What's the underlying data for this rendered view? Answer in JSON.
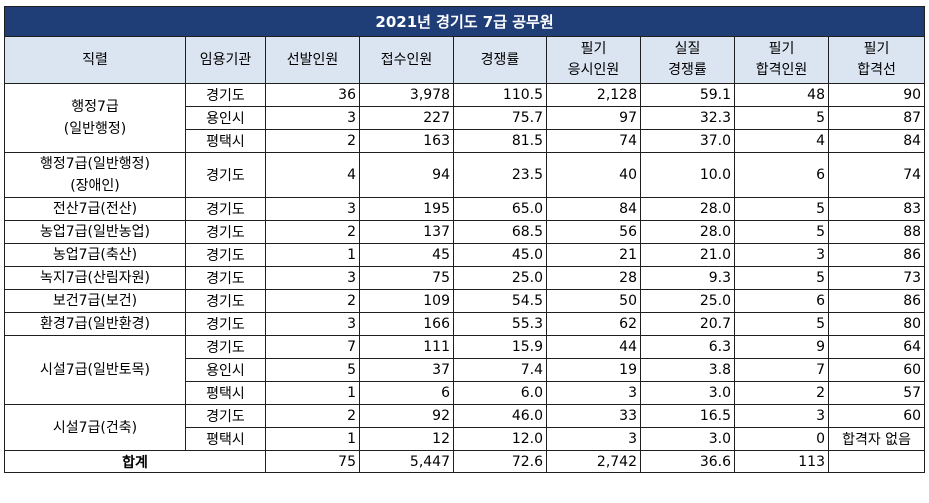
{
  "title": "2021년 경기도 7급 공무원",
  "headers": [
    [
      "직렬"
    ],
    [
      "임용기관"
    ],
    [
      "선발인원"
    ],
    [
      "접수인원"
    ],
    [
      "경쟁률"
    ],
    [
      "필기",
      "응시인원"
    ],
    [
      "실질",
      "경쟁률"
    ],
    [
      "필기",
      "합격인원"
    ],
    [
      "필기",
      "합격선"
    ]
  ],
  "rows": [
    {
      "series": [
        "행정7급",
        "(일반행정)"
      ],
      "span": 3,
      "agency": "경기도",
      "cells": [
        "36",
        "3,978",
        "110.5",
        "2,128",
        "59.1",
        "48",
        "90"
      ]
    },
    {
      "agency": "용인시",
      "cells": [
        "3",
        "227",
        "75.7",
        "97",
        "32.3",
        "5",
        "87"
      ]
    },
    {
      "agency": "평택시",
      "cells": [
        "2",
        "163",
        "81.5",
        "74",
        "37.0",
        "4",
        "84"
      ]
    },
    {
      "series": [
        "행정7급(일반행정)",
        "(장애인)"
      ],
      "span": 1,
      "agency": "경기도",
      "cells": [
        "4",
        "94",
        "23.5",
        "40",
        "10.0",
        "6",
        "74"
      ]
    },
    {
      "series": [
        "전산7급(전산)"
      ],
      "span": 1,
      "agency": "경기도",
      "cells": [
        "3",
        "195",
        "65.0",
        "84",
        "28.0",
        "5",
        "83"
      ]
    },
    {
      "series": [
        "농업7급(일반농업)"
      ],
      "span": 1,
      "agency": "경기도",
      "cells": [
        "2",
        "137",
        "68.5",
        "56",
        "28.0",
        "5",
        "88"
      ]
    },
    {
      "series": [
        "농업7급(축산)"
      ],
      "span": 1,
      "agency": "경기도",
      "cells": [
        "1",
        "45",
        "45.0",
        "21",
        "21.0",
        "3",
        "86"
      ]
    },
    {
      "series": [
        "녹지7급(산림자원)"
      ],
      "span": 1,
      "agency": "경기도",
      "cells": [
        "3",
        "75",
        "25.0",
        "28",
        "9.3",
        "5",
        "73"
      ]
    },
    {
      "series": [
        "보건7급(보건)"
      ],
      "span": 1,
      "agency": "경기도",
      "cells": [
        "2",
        "109",
        "54.5",
        "50",
        "25.0",
        "6",
        "86"
      ]
    },
    {
      "series": [
        "환경7급(일반환경)"
      ],
      "span": 1,
      "agency": "경기도",
      "cells": [
        "3",
        "166",
        "55.3",
        "62",
        "20.7",
        "5",
        "80"
      ]
    },
    {
      "series": [
        "시설7급(일반토목)"
      ],
      "span": 3,
      "agency": "경기도",
      "cells": [
        "7",
        "111",
        "15.9",
        "44",
        "6.3",
        "9",
        "64"
      ]
    },
    {
      "agency": "용인시",
      "cells": [
        "5",
        "37",
        "7.4",
        "19",
        "3.8",
        "7",
        "60"
      ]
    },
    {
      "agency": "평택시",
      "cells": [
        "1",
        "6",
        "6.0",
        "3",
        "3.0",
        "2",
        "57"
      ]
    },
    {
      "series": [
        "시설7급(건축)"
      ],
      "span": 2,
      "agency": "경기도",
      "cells": [
        "2",
        "92",
        "46.0",
        "33",
        "16.5",
        "3",
        "60"
      ]
    },
    {
      "agency": "평택시",
      "cells": [
        "1",
        "12",
        "12.0",
        "3",
        "3.0",
        "0",
        "합격자 없음"
      ]
    }
  ],
  "total": {
    "label": "합계",
    "cells": [
      "75",
      "5,447",
      "72.6",
      "2,742",
      "36.6",
      "113",
      ""
    ]
  }
}
